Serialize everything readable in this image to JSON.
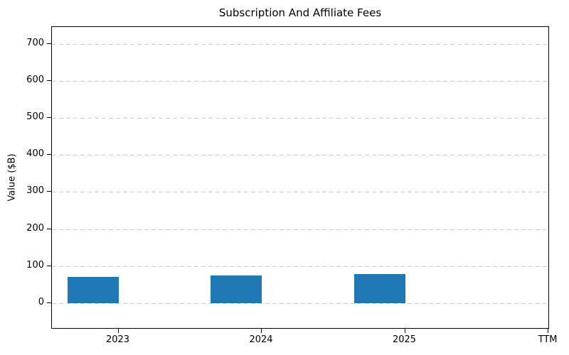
{
  "chart_data": {
    "type": "bar",
    "title": "Subscription And Affiliate Fees",
    "xlabel": "",
    "ylabel": "Value ($B)",
    "categories": [
      "2023",
      "2024",
      "2025",
      "TTM"
    ],
    "values": [
      70,
      75,
      78,
      null
    ],
    "yticks": [
      0,
      100,
      200,
      300,
      400,
      500,
      600,
      700
    ],
    "ylim": [
      -70,
      745
    ],
    "grid": {
      "axis": "y",
      "style": "dashed",
      "color": "#cccccc"
    },
    "legend": "none",
    "bar_color": "#1f77b4",
    "background_color": "#ffffff",
    "spine_color": "#000000"
  }
}
